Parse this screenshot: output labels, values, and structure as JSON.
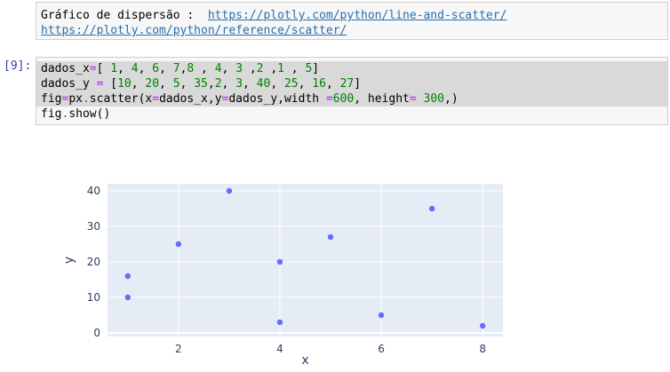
{
  "markdown": {
    "label": "Gráfico de dispersão :  ",
    "link1": "https://plotly.com/python/line-and-scatter/",
    "link2": "https://plotly.com/python/reference/scatter/"
  },
  "code_cell": {
    "prompt": "[9]:",
    "lines": [
      [
        {
          "t": "dados_x",
          "c": "txt"
        },
        {
          "t": "=",
          "c": "op"
        },
        {
          "t": "[ ",
          "c": "txt"
        },
        {
          "t": "1",
          "c": "num"
        },
        {
          "t": ", ",
          "c": "txt"
        },
        {
          "t": "4",
          "c": "num"
        },
        {
          "t": ", ",
          "c": "txt"
        },
        {
          "t": "6",
          "c": "num"
        },
        {
          "t": ", ",
          "c": "txt"
        },
        {
          "t": "7",
          "c": "num"
        },
        {
          "t": ",",
          "c": "txt"
        },
        {
          "t": "8",
          "c": "num"
        },
        {
          "t": " , ",
          "c": "txt"
        },
        {
          "t": "4",
          "c": "num"
        },
        {
          "t": ", ",
          "c": "txt"
        },
        {
          "t": "3",
          "c": "num"
        },
        {
          "t": " ,",
          "c": "txt"
        },
        {
          "t": "2",
          "c": "num"
        },
        {
          "t": " ,",
          "c": "txt"
        },
        {
          "t": "1",
          "c": "num"
        },
        {
          "t": " , ",
          "c": "txt"
        },
        {
          "t": "5",
          "c": "num"
        },
        {
          "t": "]",
          "c": "txt"
        }
      ],
      [
        {
          "t": "dados_y ",
          "c": "txt"
        },
        {
          "t": "=",
          "c": "op"
        },
        {
          "t": " [",
          "c": "txt"
        },
        {
          "t": "10",
          "c": "num"
        },
        {
          "t": ", ",
          "c": "txt"
        },
        {
          "t": "20",
          "c": "num"
        },
        {
          "t": ", ",
          "c": "txt"
        },
        {
          "t": "5",
          "c": "num"
        },
        {
          "t": ", ",
          "c": "txt"
        },
        {
          "t": "35",
          "c": "num"
        },
        {
          "t": ",",
          "c": "txt"
        },
        {
          "t": "2",
          "c": "num"
        },
        {
          "t": ", ",
          "c": "txt"
        },
        {
          "t": "3",
          "c": "num"
        },
        {
          "t": ", ",
          "c": "txt"
        },
        {
          "t": "40",
          "c": "num"
        },
        {
          "t": ", ",
          "c": "txt"
        },
        {
          "t": "25",
          "c": "num"
        },
        {
          "t": ", ",
          "c": "txt"
        },
        {
          "t": "16",
          "c": "num"
        },
        {
          "t": ", ",
          "c": "txt"
        },
        {
          "t": "27",
          "c": "num"
        },
        {
          "t": "]",
          "c": "txt"
        }
      ],
      [
        {
          "t": "fig",
          "c": "txt"
        },
        {
          "t": "=",
          "c": "op"
        },
        {
          "t": "px",
          "c": "txt"
        },
        {
          "t": ".",
          "c": "op"
        },
        {
          "t": "scatter(x",
          "c": "txt"
        },
        {
          "t": "=",
          "c": "op"
        },
        {
          "t": "dados_x,y",
          "c": "txt"
        },
        {
          "t": "=",
          "c": "op"
        },
        {
          "t": "dados_y,width ",
          "c": "txt"
        },
        {
          "t": "=",
          "c": "op"
        },
        {
          "t": "600",
          "c": "num"
        },
        {
          "t": ", height",
          "c": "txt"
        },
        {
          "t": "=",
          "c": "op"
        },
        {
          "t": " ",
          "c": "txt"
        },
        {
          "t": "300",
          "c": "num"
        },
        {
          "t": ",)",
          "c": "txt"
        }
      ],
      [
        {
          "t": "fig",
          "c": "txt"
        },
        {
          "t": ".",
          "c": "op"
        },
        {
          "t": "show()",
          "c": "txt"
        }
      ]
    ]
  },
  "chart_data": {
    "type": "scatter",
    "x": [
      1,
      4,
      6,
      7,
      8,
      4,
      3,
      2,
      1,
      5
    ],
    "y": [
      10,
      20,
      5,
      35,
      2,
      3,
      40,
      25,
      16,
      27
    ],
    "xlabel": "x",
    "ylabel": "y",
    "xlim": [
      0.6,
      8.4
    ],
    "ylim": [
      -1,
      42
    ],
    "xticks": [
      2,
      4,
      6,
      8
    ],
    "yticks": [
      0,
      10,
      20,
      30,
      40
    ],
    "grid": true,
    "marker_color": "#636efa",
    "plot_bg": "#e5ecf6"
  }
}
